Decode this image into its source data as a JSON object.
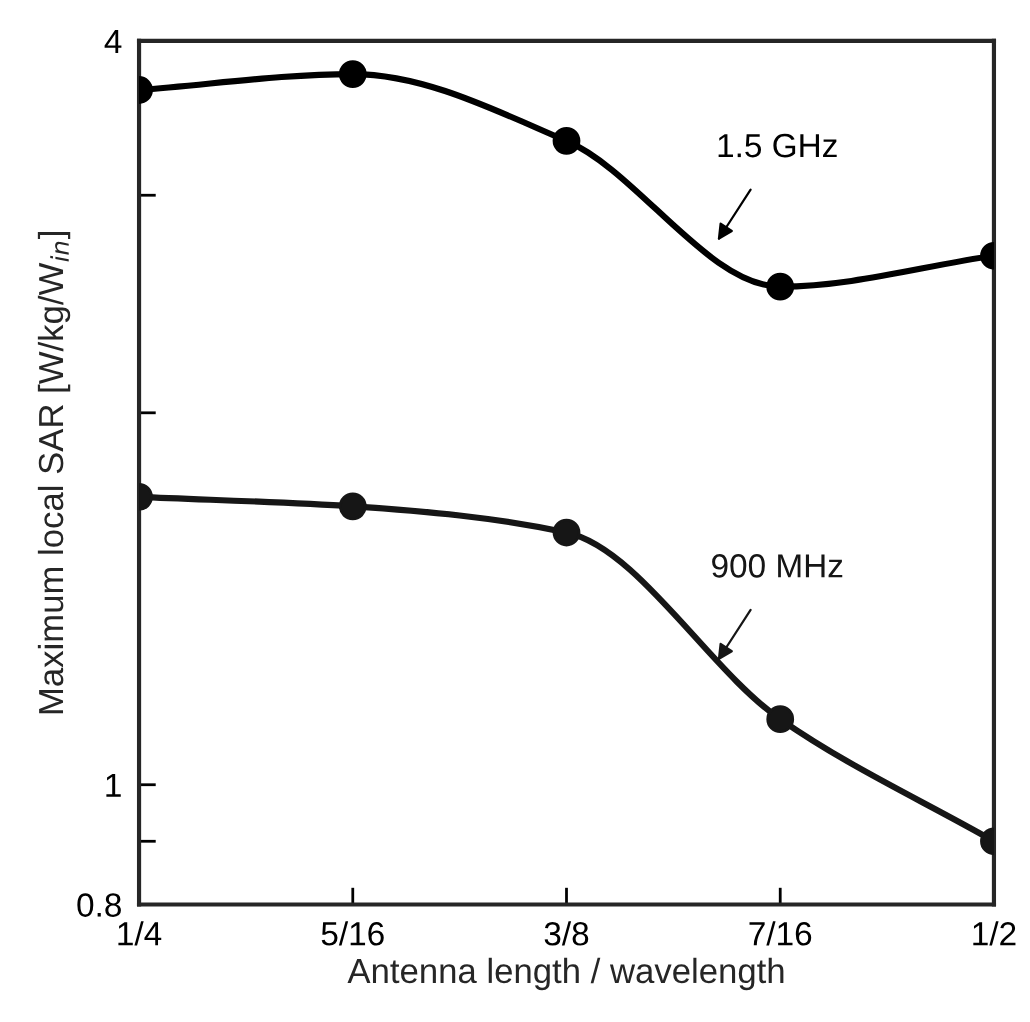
{
  "chart_data": {
    "type": "line",
    "xlabel": "Antenna length / wavelength",
    "ylabel": "Maximum local SAR [W/kg/W$_{in}$]",
    "x": [
      0.25,
      0.3125,
      0.375,
      0.4375,
      0.5
    ],
    "series": [
      {
        "name": "1.5 GHz",
        "color": "#000000",
        "values": [
          3.65,
          3.76,
          3.32,
          2.53,
          2.68
        ]
      },
      {
        "name": "900 MHz",
        "color": "#161616",
        "values": [
          1.71,
          1.68,
          1.6,
          1.13,
          0.9
        ]
      }
    ],
    "log": true,
    "marker": "circle",
    "line_style": "solid",
    "xlim": [
      0.25,
      0.5
    ],
    "xticks": [
      {
        "value": 0.25,
        "label": "1/4"
      },
      {
        "value": 0.3125,
        "label": "5/16"
      },
      {
        "value": 0.375,
        "label": "3/8"
      },
      {
        "value": 0.4375,
        "label": "7/16"
      },
      {
        "value": 0.5,
        "label": "1/2"
      }
    ],
    "ylim": [
      0.8,
      4
    ],
    "yticks": [
      0.8,
      {
        "value": 0.9,
        "label": null
      },
      1,
      {
        "value": 2,
        "label": null
      },
      {
        "value": 3,
        "label": null
      },
      4
    ]
  }
}
